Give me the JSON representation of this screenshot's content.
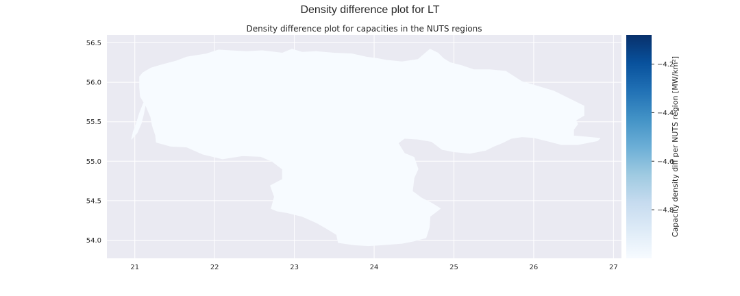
{
  "figure": {
    "suptitle": "Density difference plot for LT"
  },
  "chart_data": {
    "type": "choropleth map",
    "title": "Density difference plot for capacities in the NUTS regions",
    "xlim": [
      20.65,
      27.1
    ],
    "ylim": [
      53.77,
      56.6
    ],
    "x_ticks": [
      21,
      22,
      23,
      24,
      25,
      26,
      27
    ],
    "x_tick_labels": [
      "21",
      "22",
      "23",
      "24",
      "25",
      "26",
      "27"
    ],
    "y_ticks": [
      54.0,
      54.5,
      55.0,
      55.5,
      56.0,
      56.5
    ],
    "y_tick_labels": [
      "54.0",
      "54.5",
      "55.0",
      "55.5",
      "56.0",
      "56.5"
    ],
    "grid": true,
    "background_color": "#EAEAF2",
    "grid_color": "#FFFFFF",
    "region_fill_color": "#F7FBFF",
    "regions": [
      {
        "name": "LT",
        "outline": [
          [
            21.06,
            56.07
          ],
          [
            21.1,
            56.12
          ],
          [
            21.2,
            56.18
          ],
          [
            21.33,
            56.22
          ],
          [
            21.52,
            56.27
          ],
          [
            21.65,
            56.32
          ],
          [
            21.9,
            56.36
          ],
          [
            22.05,
            56.41
          ],
          [
            22.2,
            56.4
          ],
          [
            22.4,
            56.39
          ],
          [
            22.6,
            56.4
          ],
          [
            22.85,
            56.37
          ],
          [
            22.97,
            56.42
          ],
          [
            23.1,
            56.38
          ],
          [
            23.27,
            56.39
          ],
          [
            23.5,
            56.37
          ],
          [
            23.72,
            56.36
          ],
          [
            23.9,
            56.32
          ],
          [
            24.05,
            56.3
          ],
          [
            24.15,
            56.28
          ],
          [
            24.35,
            56.26
          ],
          [
            24.55,
            56.29
          ],
          [
            24.7,
            56.42
          ],
          [
            24.8,
            56.37
          ],
          [
            24.87,
            56.3
          ],
          [
            24.95,
            56.25
          ],
          [
            25.1,
            56.21
          ],
          [
            25.25,
            56.16
          ],
          [
            25.45,
            56.16
          ],
          [
            25.65,
            56.14
          ],
          [
            25.85,
            56.01
          ],
          [
            26.05,
            55.95
          ],
          [
            26.25,
            55.89
          ],
          [
            26.45,
            55.79
          ],
          [
            26.63,
            55.7
          ],
          [
            26.63,
            55.58
          ],
          [
            26.53,
            55.52
          ],
          [
            26.55,
            55.47
          ],
          [
            26.5,
            55.4
          ],
          [
            26.5,
            55.32
          ],
          [
            26.63,
            55.31
          ],
          [
            26.83,
            55.29
          ],
          [
            26.8,
            55.26
          ],
          [
            26.55,
            55.21
          ],
          [
            26.35,
            55.21
          ],
          [
            26.2,
            55.25
          ],
          [
            26.0,
            55.3
          ],
          [
            25.85,
            55.31
          ],
          [
            25.72,
            55.29
          ],
          [
            25.6,
            55.23
          ],
          [
            25.5,
            55.19
          ],
          [
            25.4,
            55.14
          ],
          [
            25.2,
            55.1
          ],
          [
            25.0,
            55.12
          ],
          [
            24.85,
            55.15
          ],
          [
            24.72,
            55.25
          ],
          [
            24.55,
            55.28
          ],
          [
            24.38,
            55.29
          ],
          [
            24.3,
            55.23
          ],
          [
            24.38,
            55.1
          ],
          [
            24.5,
            55.05
          ],
          [
            24.55,
            54.9
          ],
          [
            24.5,
            54.79
          ],
          [
            24.48,
            54.62
          ],
          [
            24.6,
            54.53
          ],
          [
            24.72,
            54.47
          ],
          [
            24.83,
            54.4
          ],
          [
            24.7,
            54.3
          ],
          [
            24.69,
            54.16
          ],
          [
            24.65,
            54.03
          ],
          [
            24.5,
            53.99
          ],
          [
            24.35,
            53.96
          ],
          [
            24.1,
            53.94
          ],
          [
            23.93,
            53.93
          ],
          [
            23.75,
            53.94
          ],
          [
            23.55,
            53.97
          ],
          [
            23.53,
            54.07
          ],
          [
            23.4,
            54.15
          ],
          [
            23.28,
            54.22
          ],
          [
            23.1,
            54.3
          ],
          [
            22.9,
            54.35
          ],
          [
            22.78,
            54.37
          ],
          [
            22.71,
            54.4
          ],
          [
            22.75,
            54.55
          ],
          [
            22.7,
            54.69
          ],
          [
            22.85,
            54.77
          ],
          [
            22.85,
            54.9
          ],
          [
            22.72,
            55.0
          ],
          [
            22.58,
            55.06
          ],
          [
            22.35,
            55.07
          ],
          [
            22.1,
            55.03
          ],
          [
            21.85,
            55.09
          ],
          [
            21.65,
            55.18
          ],
          [
            21.45,
            55.19
          ],
          [
            21.27,
            55.24
          ],
          [
            21.26,
            55.33
          ],
          [
            21.22,
            55.45
          ],
          [
            21.2,
            55.56
          ],
          [
            21.14,
            55.7
          ],
          [
            21.07,
            55.82
          ],
          [
            21.06,
            55.94
          ]
        ]
      },
      {
        "name": "Curonian Spit (LT)",
        "outline": [
          [
            20.96,
            55.28
          ],
          [
            21.03,
            55.36
          ],
          [
            21.08,
            55.48
          ],
          [
            21.11,
            55.6
          ],
          [
            21.13,
            55.7
          ],
          [
            21.11,
            55.74
          ],
          [
            21.06,
            55.61
          ],
          [
            21.02,
            55.48
          ],
          [
            20.98,
            55.37
          ]
        ]
      }
    ],
    "colorbar": {
      "label": "Capacity density diff per NUTS region [MW/km²]",
      "cmap": "Blues",
      "vmin": -5.0,
      "vmax": -4.08,
      "ticks": [
        -4.2,
        -4.4,
        -4.6,
        -4.8
      ],
      "tick_labels": [
        "−4.2",
        "−4.4",
        "−4.6",
        "−4.8"
      ],
      "gradient_colors": [
        "#F7FBFF",
        "#DEEBF7",
        "#C6DBEF",
        "#9ECAE1",
        "#6BAED6",
        "#4292C6",
        "#2171B5",
        "#08519C",
        "#08306B"
      ]
    }
  }
}
